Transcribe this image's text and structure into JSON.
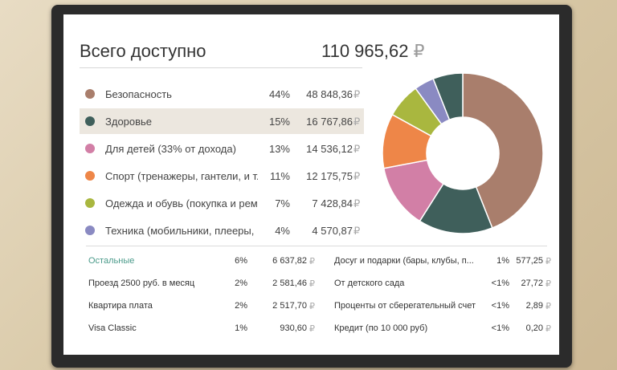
{
  "header": {
    "title": "Всего доступно",
    "total": "110 965,62",
    "currency": "₽"
  },
  "categories": [
    {
      "label": "Безопасность",
      "pct": "44%",
      "amount": "48 848,36",
      "color": "#a97e6c"
    },
    {
      "label": "Здоровье",
      "pct": "15%",
      "amount": "16 767,86",
      "color": "#3f5f5b"
    },
    {
      "label": "Для детей (33% от дохода)",
      "pct": "13%",
      "amount": "14 536,12",
      "color": "#d27fa6"
    },
    {
      "label": "Спорт (тренажеры, гантели, и т...",
      "pct": "11%",
      "amount": "12 175,75",
      "color": "#ee8648"
    },
    {
      "label": "Одежда и обувь (покупка и рем...",
      "pct": "7%",
      "amount": "7 428,84",
      "color": "#a9b73f"
    },
    {
      "label": "Техника (мобильники, плееры, ...",
      "pct": "4%",
      "amount": "4 570,87",
      "color": "#8a8ac2"
    }
  ],
  "donut": {
    "colors": [
      "#a97e6c",
      "#3f5f5b",
      "#d27fa6",
      "#ee8648",
      "#a9b73f",
      "#8a8ac2",
      "#3f5f5b"
    ],
    "values": [
      44,
      15,
      13,
      11,
      7,
      4,
      6
    ]
  },
  "small_left": [
    {
      "label": "Остальные",
      "pct": "6%",
      "amount": "6 637,82"
    },
    {
      "label": "Проезд 2500 руб. в месяц",
      "pct": "2%",
      "amount": "2 581,46"
    },
    {
      "label": "Квартира плата",
      "pct": "2%",
      "amount": "2 517,70"
    },
    {
      "label": "Visa Classic",
      "pct": "1%",
      "amount": "930,60"
    }
  ],
  "small_right": [
    {
      "label": "Досуг и подарки (бары, клубы, п...",
      "pct": "1%",
      "amount": "577,25"
    },
    {
      "label": "От детского сада",
      "pct": "<1%",
      "amount": "27,72"
    },
    {
      "label": "Проценты от сберегательный счет",
      "pct": "<1%",
      "amount": "2,89"
    },
    {
      "label": "Кредит (по 10 000 руб)",
      "pct": "<1%",
      "amount": "0,20"
    }
  ]
}
